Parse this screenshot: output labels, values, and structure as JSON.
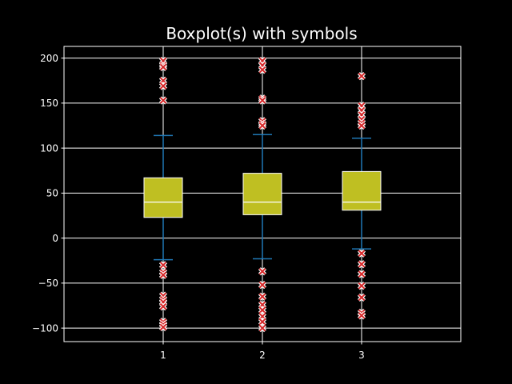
{
  "chart_data": {
    "type": "box",
    "title": "Boxplot(s) with symbols",
    "xlabel": "",
    "ylabel": "",
    "categories": [
      "1",
      "2",
      "3"
    ],
    "ylim": [
      -115,
      213
    ],
    "yticks": [
      -100,
      -50,
      0,
      50,
      100,
      150,
      200
    ],
    "ytick_labels": [
      "−100",
      "−50",
      "0",
      "50",
      "100",
      "150",
      "200"
    ],
    "grid": true,
    "boxes": [
      {
        "label": "1",
        "whisker_low": -24,
        "q1": 23,
        "median": 40,
        "q3": 67,
        "whisker_high": 114,
        "fliers": [
          197,
          192,
          190,
          175,
          169,
          153,
          -30,
          -38,
          -41,
          -64,
          -68,
          -71,
          -76,
          -93,
          -96,
          -99
        ]
      },
      {
        "label": "2",
        "whisker_low": -23,
        "q1": 26,
        "median": 40,
        "q3": 72,
        "whisker_high": 115,
        "fliers": [
          197,
          192,
          187,
          155,
          153,
          130,
          127,
          125,
          -37,
          -52,
          -65,
          -74,
          -80,
          -87,
          -93,
          -100
        ]
      },
      {
        "label": "3",
        "whisker_low": -12,
        "q1": 31,
        "median": 40,
        "q3": 74,
        "whisker_high": 111,
        "fliers": [
          180,
          147,
          142,
          137,
          132,
          128,
          125,
          -17,
          -29,
          -40,
          -53,
          -66,
          -83,
          -86
        ]
      }
    ],
    "colors": {
      "background": "#000000",
      "axes": "#ffffff",
      "grid": "#ffffff",
      "box_fill": "#bfbf22",
      "box_edge": "#ffffff",
      "median": "#ffffff",
      "whisker": "#1f77b4",
      "flier_edge": "#ffffff",
      "flier_face": "#d62728"
    },
    "flier_marker": "x"
  }
}
